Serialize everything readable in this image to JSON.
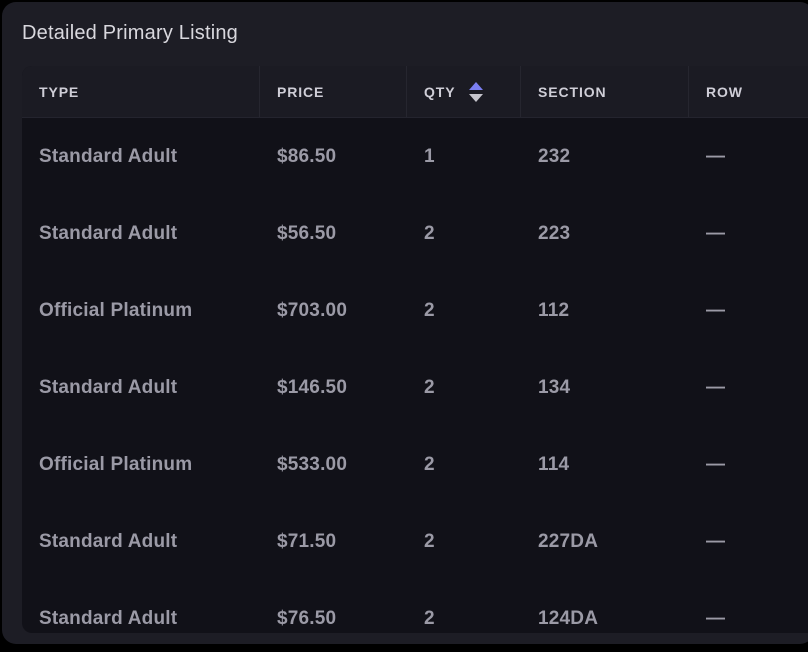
{
  "page": {
    "title": "Detailed Primary Listing"
  },
  "theme": {
    "page-bg": "#000000",
    "panel-bg": "#1d1d25",
    "header-bg": "#1b1b23",
    "body-bg": "#111118",
    "divider": "#26262f",
    "header-border": "#24242e",
    "title-color": "#d9d8de",
    "header-text": "#cfced7",
    "row-text": "#9b9aa6",
    "sort-active": "#7b7ff2",
    "sort-inactive": "#c6c5cd"
  },
  "table": {
    "columns": [
      {
        "label": "TYPE"
      },
      {
        "label": "PRICE"
      },
      {
        "label": "QTY",
        "sorted": "asc"
      },
      {
        "label": "SECTION"
      },
      {
        "label": "ROW"
      }
    ],
    "rows": [
      {
        "type": "Standard Adult",
        "price": "$86.50",
        "qty": "1",
        "section": "232",
        "row": "—"
      },
      {
        "type": "Standard Adult",
        "price": "$56.50",
        "qty": "2",
        "section": "223",
        "row": "—"
      },
      {
        "type": "Official Platinum",
        "price": "$703.00",
        "qty": "2",
        "section": "112",
        "row": "—"
      },
      {
        "type": "Standard Adult",
        "price": "$146.50",
        "qty": "2",
        "section": "134",
        "row": "—"
      },
      {
        "type": "Official Platinum",
        "price": "$533.00",
        "qty": "2",
        "section": "114",
        "row": "—"
      },
      {
        "type": "Standard Adult",
        "price": "$71.50",
        "qty": "2",
        "section": "227DA",
        "row": "—"
      },
      {
        "type": "Standard Adult",
        "price": "$76.50",
        "qty": "2",
        "section": "124DA",
        "row": "—"
      }
    ]
  }
}
